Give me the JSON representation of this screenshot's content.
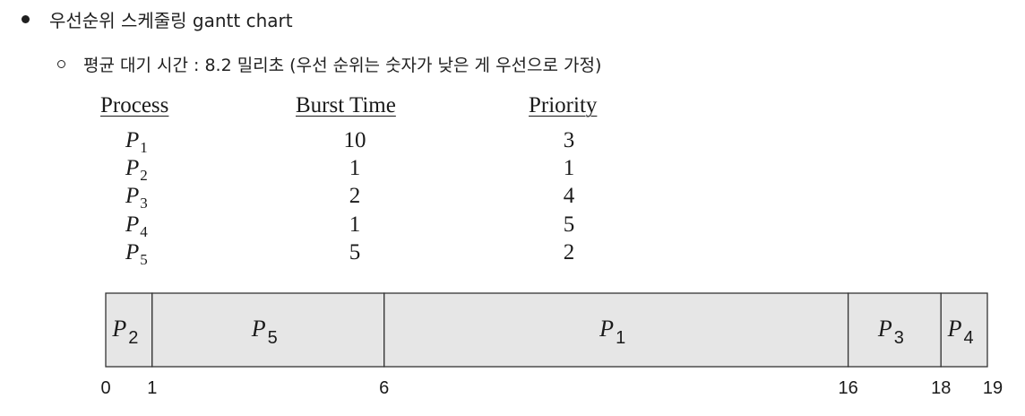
{
  "bullets": {
    "main": "우선순위 스케줄링 gantt chart",
    "sub": "평균 대기 시간 : 8.2 밀리초 (우선 순위는 숫자가 낮은 게 우선으로 가정)"
  },
  "table": {
    "headers": [
      "Process",
      "Burst Time",
      "Priority"
    ],
    "rows": [
      {
        "process": "P",
        "sub": "1",
        "burst": "10",
        "priority": "3"
      },
      {
        "process": "P",
        "sub": "2",
        "burst": "1",
        "priority": "1"
      },
      {
        "process": "P",
        "sub": "3",
        "burst": "2",
        "priority": "4"
      },
      {
        "process": "P",
        "sub": "4",
        "burst": "1",
        "priority": "5"
      },
      {
        "process": "P",
        "sub": "5",
        "burst": "5",
        "priority": "2"
      }
    ]
  },
  "gantt": {
    "fill_color": "#e6e6e6",
    "border_color": "#333333",
    "segments": [
      {
        "label": "P",
        "sub": "2",
        "start": 0,
        "end": 1
      },
      {
        "label": "P",
        "sub": "5",
        "start": 1,
        "end": 6
      },
      {
        "label": "P",
        "sub": "1",
        "start": 6,
        "end": 16
      },
      {
        "label": "P",
        "sub": "3",
        "start": 16,
        "end": 18
      },
      {
        "label": "P",
        "sub": "4",
        "start": 18,
        "end": 19
      }
    ],
    "ticks": [
      "0",
      "1",
      "6",
      "16",
      "18",
      "19"
    ]
  }
}
